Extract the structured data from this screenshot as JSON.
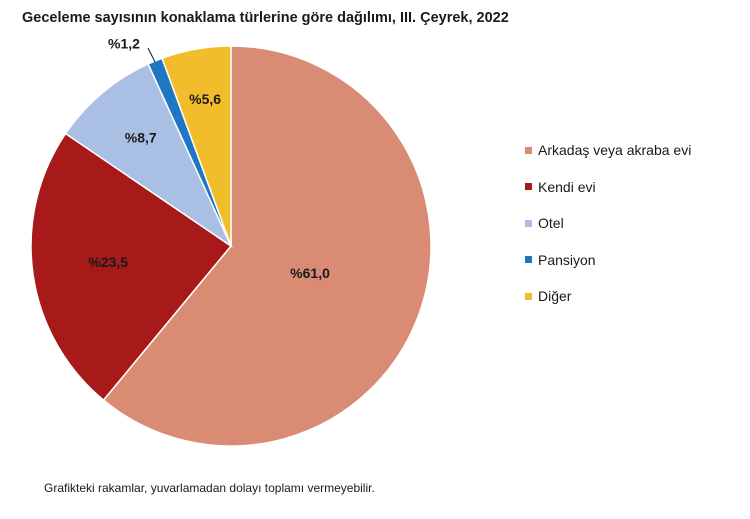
{
  "chart_data": {
    "type": "pie",
    "title": "Geceleme sayısının konaklama türlerine göre dağılımı, III. Çeyrek, 2022",
    "categories": [
      "Arkadaş veya akraba evi",
      "Kendi evi",
      "Otel",
      "Pansiyon",
      "Diğer"
    ],
    "values": [
      61.0,
      23.5,
      8.7,
      1.2,
      5.6
    ],
    "data_labels": [
      "%61,0",
      "%23,5",
      "%8,7",
      "%1,2",
      "%5,6"
    ],
    "colors": [
      "#d98b74",
      "#a81a1a",
      "#a9bfe3",
      "#1f77c4",
      "#f2bd2a"
    ],
    "start_angle": "12 o'clock",
    "direction": "clockwise",
    "legend": "right"
  },
  "footnote": "Grafikteki rakamlar, yuvarlamadan dolayı toplamı vermeyebilir."
}
